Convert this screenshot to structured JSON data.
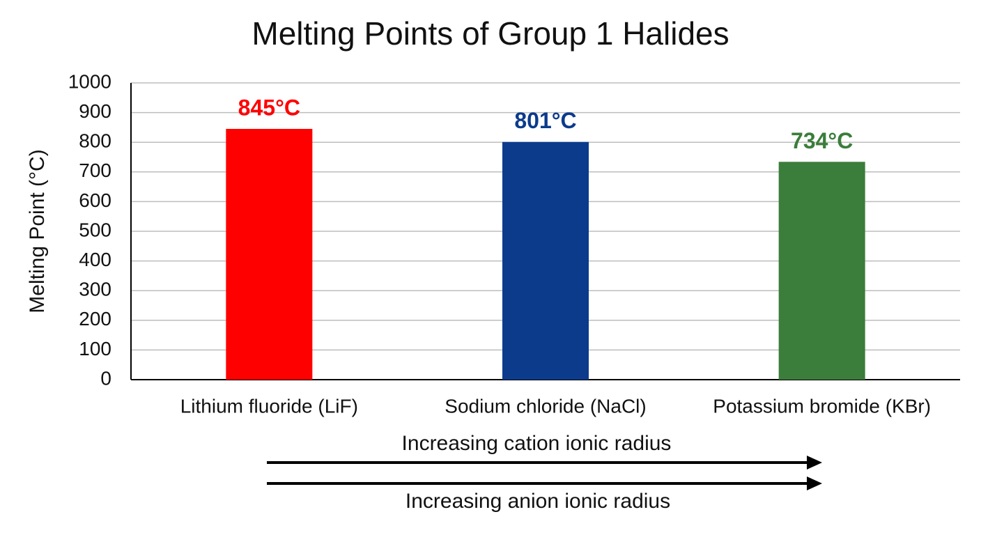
{
  "chart_data": {
    "type": "bar",
    "title": "Melting Points of Group 1 Halides",
    "y_label": "Melting Point (°C)",
    "categories": [
      "Lithium fluoride (LiF)",
      "Sodium chloride (NaCl)",
      "Potassium bromide (KBr)"
    ],
    "values": [
      845,
      801,
      734
    ],
    "value_labels": [
      "845°C",
      "801°C",
      "734°C"
    ],
    "colors": [
      "#ff0000",
      "#0c3b8c",
      "#3b7d3b"
    ],
    "ylim": [
      0,
      1000
    ],
    "yticks": [
      0,
      100,
      200,
      300,
      400,
      500,
      600,
      700,
      800,
      900,
      1000
    ],
    "grid": true,
    "annotations": [
      "Increasing cation ionic radius",
      "Increasing anion ionic radius"
    ]
  }
}
